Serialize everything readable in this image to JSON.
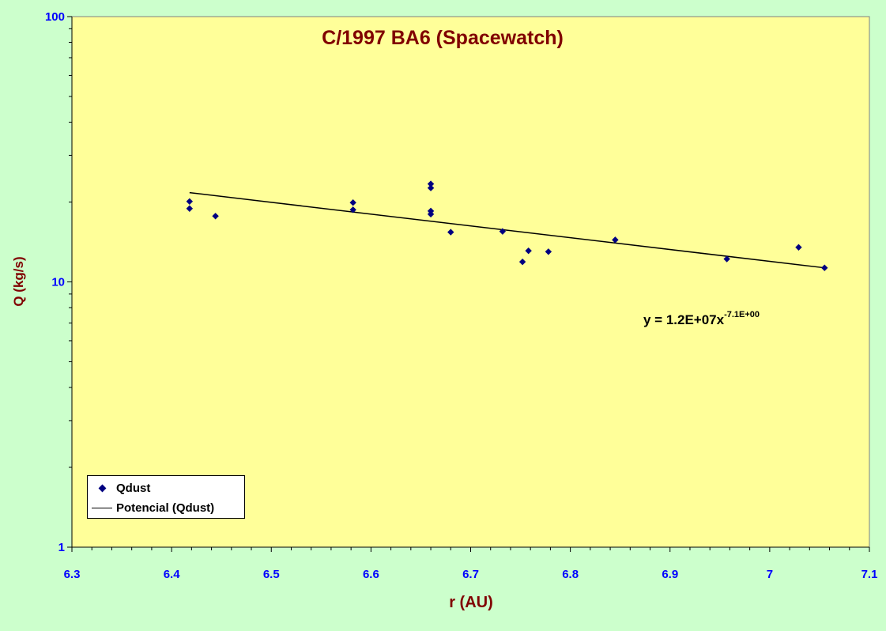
{
  "chart_data": {
    "type": "scatter",
    "title": "C/1997 BA6 (Spacewatch)",
    "xlabel": "r (AU)",
    "ylabel": "Q (kg/s)",
    "xlim": [
      6.3,
      7.1
    ],
    "ylim": [
      1,
      100
    ],
    "y_scale": "log",
    "x_ticks": [
      "6.3",
      "6.4",
      "6.5",
      "6.6",
      "6.7",
      "6.8",
      "6.9",
      "7",
      "7.1"
    ],
    "y_ticks": [
      "1",
      "10",
      "100"
    ],
    "grid": false,
    "legend_position": "bottom-left",
    "series": [
      {
        "name": "Qdust",
        "marker": "diamond",
        "color": "#000080",
        "x": [
          6.418,
          6.418,
          6.444,
          6.582,
          6.582,
          6.66,
          6.66,
          6.66,
          6.66,
          6.68,
          6.732,
          6.752,
          6.758,
          6.778,
          6.845,
          6.957,
          7.029,
          7.055
        ],
        "y": [
          20.1,
          18.9,
          17.7,
          19.9,
          18.7,
          23.4,
          22.6,
          18.5,
          18.0,
          15.4,
          15.5,
          11.9,
          13.1,
          13.0,
          14.4,
          12.2,
          13.5,
          11.3
        ]
      },
      {
        "name": "Potencial (Qdust)",
        "type": "line",
        "color": "#000000",
        "x": [
          6.418,
          7.055
        ],
        "y": [
          21.7,
          11.3
        ]
      }
    ],
    "annotations": [
      {
        "text": "y = 1.2E+07x",
        "superscript": "-7.1E+00"
      }
    ]
  },
  "colors": {
    "page_bg": "#ccffcc",
    "plot_bg": "#ffff99",
    "title": "#800000",
    "axis_title": "#800000",
    "tick_label": "#0000ff",
    "marker": "#000080"
  }
}
